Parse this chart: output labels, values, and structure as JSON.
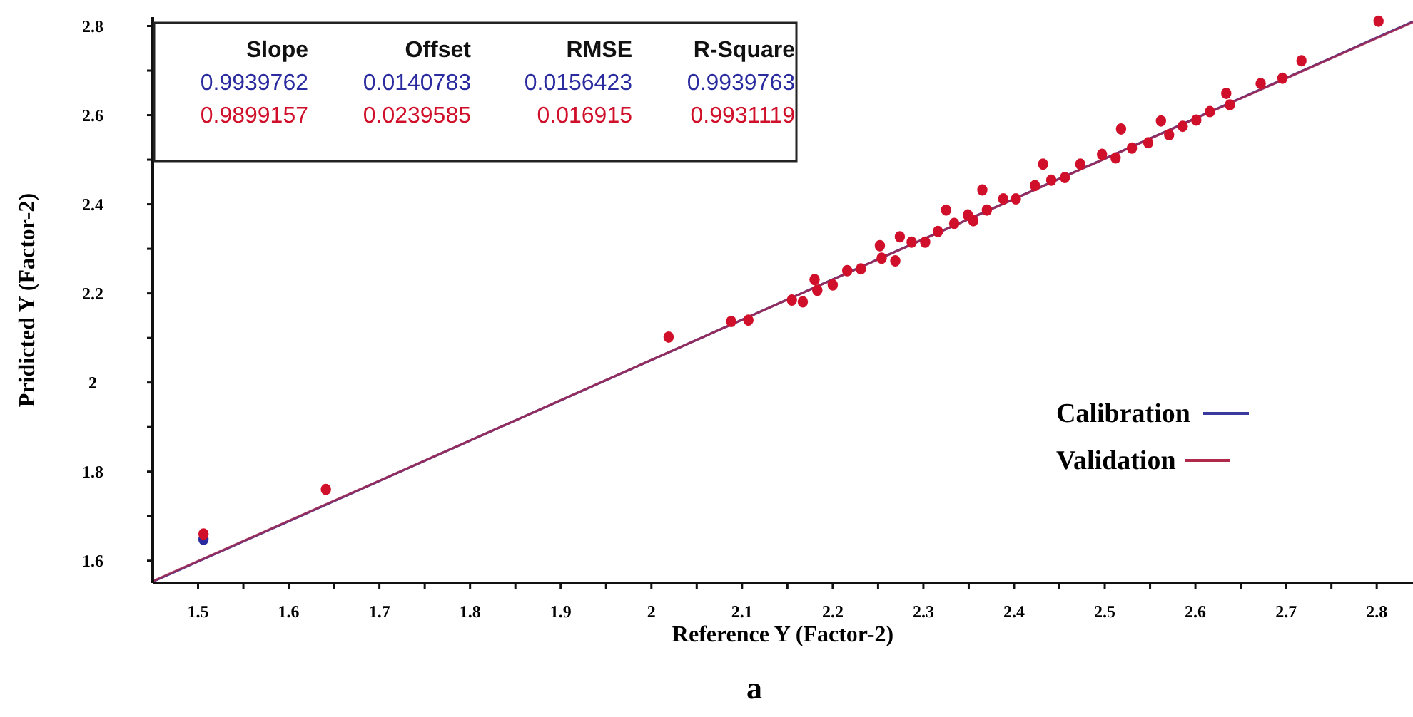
{
  "chart_data": {
    "type": "scatter",
    "xlabel": "Reference Y (Factor-2)",
    "ylabel": "Pridicted  Y (Factor-2)",
    "xlim": [
      1.45,
      2.84
    ],
    "ylim": [
      1.55,
      2.82
    ],
    "xticks": [
      1.5,
      {
        "value": 1.55,
        "label": null
      },
      1.6,
      {
        "value": 1.65,
        "label": null
      },
      1.7,
      {
        "value": 1.75,
        "label": null
      },
      1.8,
      {
        "value": 1.85,
        "label": null
      },
      1.9,
      {
        "value": 1.95,
        "label": null
      },
      2,
      {
        "value": 2.05,
        "label": null
      },
      2.1,
      {
        "value": 2.15,
        "label": null
      },
      2.2,
      {
        "value": 2.25,
        "label": null
      },
      2.3,
      {
        "value": 2.35,
        "label": null
      },
      2.4,
      {
        "value": 2.45,
        "label": null
      },
      2.5,
      {
        "value": 2.55,
        "label": null
      },
      2.6,
      {
        "value": 2.65,
        "label": null
      },
      2.7,
      {
        "value": 2.75,
        "label": null
      },
      2.8
    ],
    "yticks": [
      1.6,
      {
        "value": 1.7,
        "label": null
      },
      1.8,
      {
        "value": 1.9,
        "label": null
      },
      2,
      {
        "value": 2.1,
        "label": null
      },
      2.2,
      {
        "value": 2.3,
        "label": null
      },
      2.4,
      {
        "value": 2.5,
        "label": null
      },
      2.6,
      {
        "value": 2.7,
        "label": null
      },
      2.8
    ],
    "legend": "right",
    "series": [
      {
        "marker": "circle",
        "color": "#2b2ba0",
        "x": [
          1.506
        ],
        "values": [
          1.648
        ]
      },
      {
        "marker": "circle",
        "color": "#d0102a",
        "x": [
          1.506,
          1.641,
          2.019,
          2.088,
          2.107,
          2.155,
          2.167,
          2.18,
          2.183,
          2.2,
          2.216,
          2.231,
          2.252,
          2.254,
          2.269,
          2.274,
          2.287,
          2.302,
          2.316,
          2.325,
          2.334,
          2.349,
          2.355,
          2.365,
          2.37,
          2.388,
          2.402,
          2.423,
          2.432,
          2.441,
          2.456,
          2.473,
          2.497,
          2.512,
          2.518,
          2.53,
          2.548,
          2.562,
          2.571,
          2.586,
          2.601,
          2.616,
          2.634,
          2.638,
          2.672,
          2.696,
          2.717,
          2.802
        ],
        "values": [
          1.66,
          1.76,
          2.102,
          2.137,
          2.14,
          2.185,
          2.181,
          2.231,
          2.207,
          2.219,
          2.251,
          2.255,
          2.307,
          2.279,
          2.273,
          2.327,
          2.315,
          2.315,
          2.339,
          2.387,
          2.357,
          2.376,
          2.363,
          2.432,
          2.387,
          2.412,
          2.412,
          2.442,
          2.49,
          2.454,
          2.46,
          2.49,
          2.512,
          2.504,
          2.569,
          2.526,
          2.538,
          2.587,
          2.556,
          2.575,
          2.589,
          2.608,
          2.649,
          2.623,
          2.671,
          2.683,
          2.722,
          2.811
        ]
      },
      {
        "type": "line",
        "name": "Calibration",
        "color": "#3a3a9e",
        "x": [
          1.45,
          2.84
        ],
        "values": [
          1.553,
          2.81
        ]
      },
      {
        "type": "line",
        "name": "Validation",
        "color": "#b0284a",
        "x": [
          1.45,
          2.84
        ],
        "values": [
          1.554,
          2.809
        ]
      }
    ],
    "annotations": [
      "Slope",
      "Offset",
      "RMSE",
      "R-Square",
      "0.9939762",
      "0.0140783",
      "0.0156423",
      "0.9939763",
      "0.9899157",
      "0.0239585",
      "0.016915",
      "0.9931119",
      "a"
    ]
  }
}
